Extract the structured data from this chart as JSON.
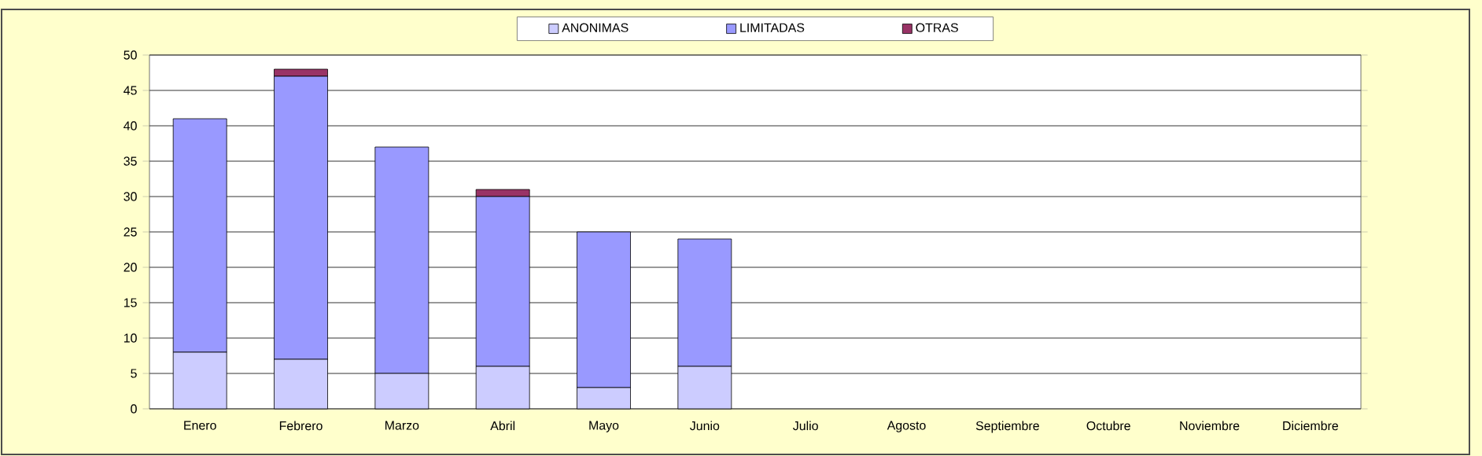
{
  "chart_data": {
    "type": "bar",
    "stacked": true,
    "categories": [
      "Enero",
      "Febrero",
      "Marzo",
      "Abril",
      "Mayo",
      "Junio",
      "Julio",
      "Agosto",
      "Septiembre",
      "Octubre",
      "Noviembre",
      "Diciembre"
    ],
    "series": [
      {
        "name": "ANONIMAS",
        "color": "#ccccff",
        "values": [
          8,
          7,
          5,
          6,
          3,
          6,
          0,
          0,
          0,
          0,
          0,
          0
        ]
      },
      {
        "name": "LIMITADAS",
        "color": "#9999ff",
        "values": [
          33,
          40,
          32,
          24,
          22,
          18,
          0,
          0,
          0,
          0,
          0,
          0
        ]
      },
      {
        "name": "OTRAS",
        "color": "#993366",
        "values": [
          0,
          1,
          0,
          1,
          0,
          0,
          0,
          0,
          0,
          0,
          0,
          0
        ]
      }
    ],
    "ylim": [
      0,
      50
    ],
    "yticks": [
      0,
      5,
      10,
      15,
      20,
      25,
      30,
      35,
      40,
      45,
      50
    ],
    "grid": "y",
    "legend": "top"
  }
}
